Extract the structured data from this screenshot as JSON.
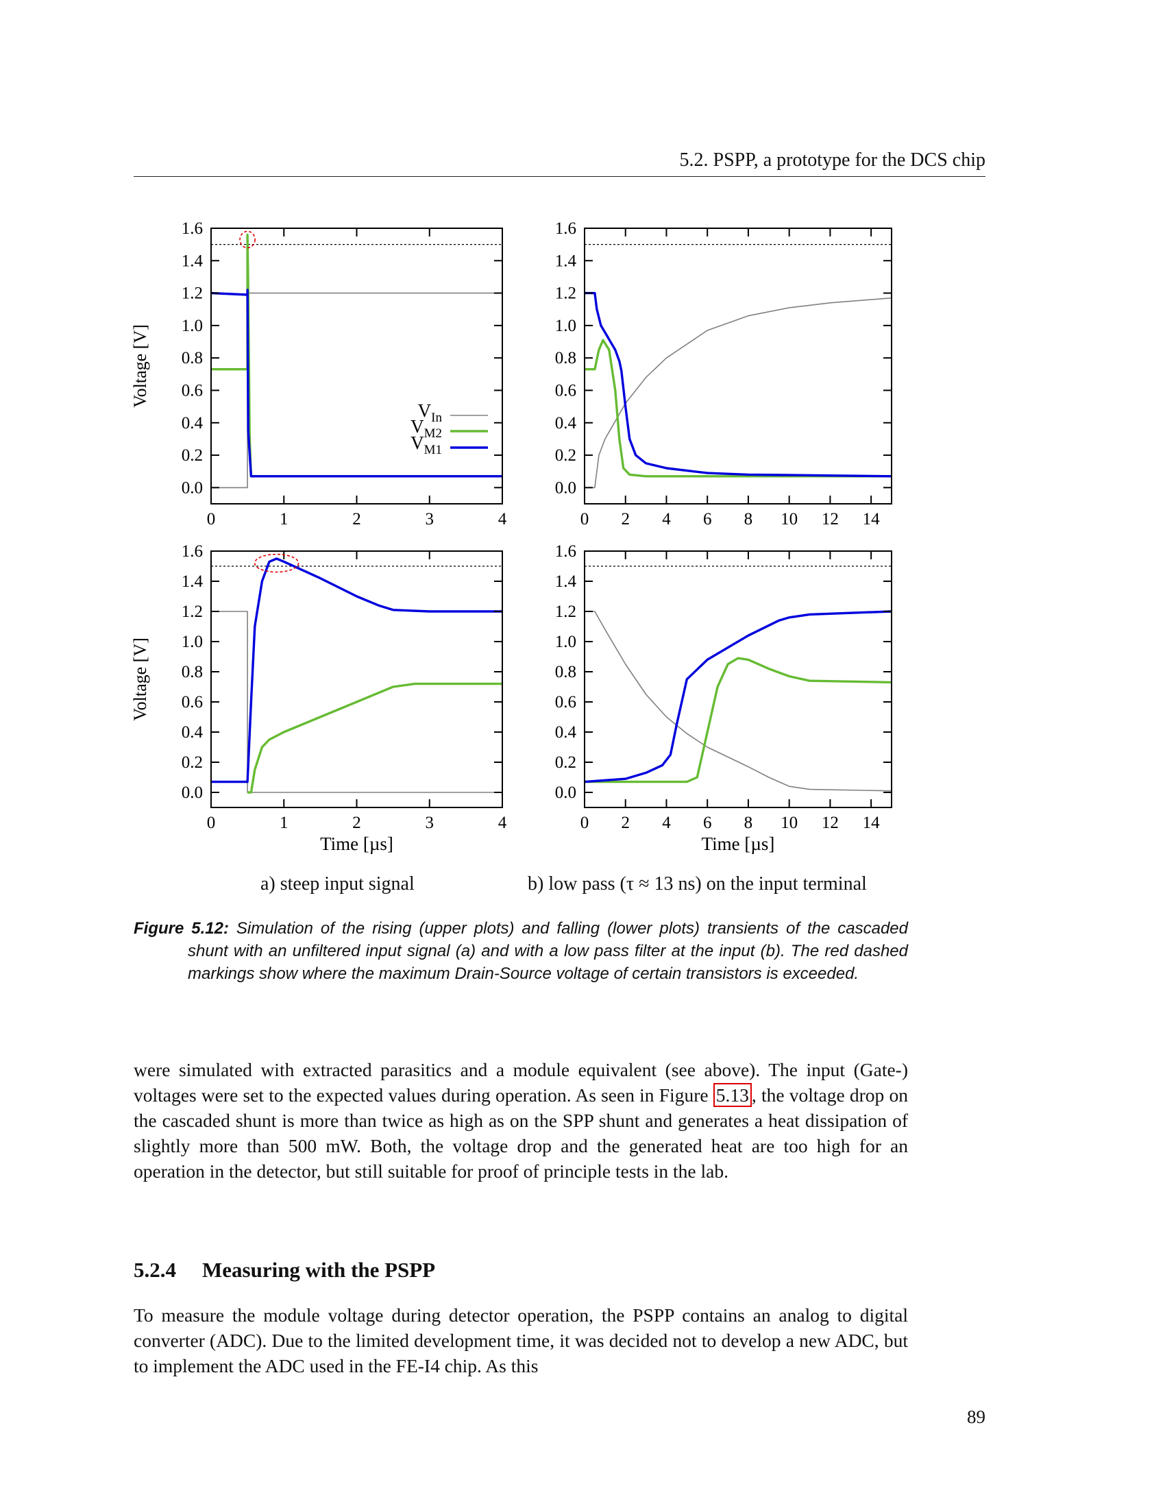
{
  "header": {
    "running_title": "5.2.   PSPP, a prototype for the DCS chip"
  },
  "chart_data": [
    {
      "type": "line",
      "panel": "a-top",
      "ylabel": "Voltage [V]",
      "xlabel": "",
      "xlim": [
        0,
        4
      ],
      "ylim": [
        -0.1,
        1.6
      ],
      "xticks": [
        0,
        1,
        2,
        3,
        4
      ],
      "yticks": [
        "0.0",
        "0.2",
        "0.4",
        "0.6",
        "0.8",
        "1.0",
        "1.2",
        "1.4",
        "1.6"
      ],
      "limit_line": 1.5,
      "marker": {
        "x": 0.5,
        "y": 1.53
      },
      "legend": "right",
      "series": [
        {
          "name": "V_In",
          "color": "#808080",
          "x": [
            0,
            0.5,
            0.5,
            4
          ],
          "y": [
            0,
            0,
            1.2,
            1.2
          ]
        },
        {
          "name": "V_M2",
          "color": "#66bb33",
          "x": [
            0,
            0.5,
            0.5,
            0.51,
            0.53,
            0.55,
            4
          ],
          "y": [
            0.73,
            0.73,
            1.56,
            1.23,
            0.3,
            0.07,
            0.07
          ]
        },
        {
          "name": "V_M1",
          "color": "#0000dd",
          "x": [
            0,
            0.5,
            0.5,
            0.51,
            0.55,
            4
          ],
          "y": [
            1.2,
            1.19,
            1.22,
            0.35,
            0.07,
            0.07
          ]
        }
      ]
    },
    {
      "type": "line",
      "panel": "b-top",
      "ylabel": "",
      "xlabel": "",
      "xlim": [
        0,
        15
      ],
      "ylim": [
        -0.1,
        1.6
      ],
      "xticks": [
        0,
        2,
        4,
        6,
        8,
        10,
        12,
        14
      ],
      "yticks": [
        "0.0",
        "0.2",
        "0.4",
        "0.6",
        "0.8",
        "1.0",
        "1.2",
        "1.4",
        "1.6"
      ],
      "limit_line": 1.5,
      "series": [
        {
          "name": "V_In",
          "color": "#808080",
          "x": [
            0,
            0.5,
            0.7,
            1,
            2,
            3,
            4,
            6,
            8,
            10,
            12,
            15
          ],
          "y": [
            0,
            0,
            0.2,
            0.3,
            0.52,
            0.68,
            0.8,
            0.97,
            1.06,
            1.11,
            1.14,
            1.17
          ]
        },
        {
          "name": "V_M2",
          "color": "#66bb33",
          "x": [
            0,
            0.5,
            0.7,
            0.9,
            1.2,
            1.5,
            1.7,
            1.9,
            2.2,
            3,
            15
          ],
          "y": [
            0.73,
            0.73,
            0.85,
            0.91,
            0.85,
            0.6,
            0.3,
            0.12,
            0.08,
            0.07,
            0.07
          ]
        },
        {
          "name": "V_M1",
          "color": "#0000dd",
          "x": [
            0,
            0.5,
            0.6,
            0.8,
            1.5,
            1.7,
            1.8,
            2,
            2.2,
            2.5,
            3,
            4,
            6,
            8,
            15
          ],
          "y": [
            1.2,
            1.2,
            1.1,
            1.0,
            0.85,
            0.78,
            0.72,
            0.5,
            0.3,
            0.2,
            0.15,
            0.12,
            0.09,
            0.08,
            0.07
          ]
        }
      ]
    },
    {
      "type": "line",
      "panel": "a-bottom",
      "ylabel": "Voltage [V]",
      "xlabel": "Time [µs]",
      "xlim": [
        0,
        4
      ],
      "ylim": [
        -0.1,
        1.6
      ],
      "xticks": [
        0,
        1,
        2,
        3,
        4
      ],
      "yticks": [
        "0.0",
        "0.2",
        "0.4",
        "0.6",
        "0.8",
        "1.0",
        "1.2",
        "1.4",
        "1.6"
      ],
      "limit_line": 1.5,
      "marker": {
        "x": 0.9,
        "y": 1.52
      },
      "series": [
        {
          "name": "V_In",
          "color": "#808080",
          "x": [
            0,
            0.5,
            0.5,
            4
          ],
          "y": [
            1.2,
            1.2,
            0,
            0
          ]
        },
        {
          "name": "V_M2",
          "color": "#66bb33",
          "x": [
            0.5,
            0.55,
            0.6,
            0.7,
            0.8,
            1,
            1.5,
            2,
            2.5,
            2.8,
            4
          ],
          "y": [
            0,
            0,
            0.15,
            0.3,
            0.35,
            0.4,
            0.5,
            0.6,
            0.7,
            0.72,
            0.72
          ]
        },
        {
          "name": "V_M1",
          "color": "#0000dd",
          "x": [
            0,
            0.5,
            0.55,
            0.6,
            0.7,
            0.8,
            0.9,
            1,
            1.5,
            2,
            2.3,
            2.5,
            3,
            4
          ],
          "y": [
            0.07,
            0.07,
            0.6,
            1.1,
            1.4,
            1.53,
            1.55,
            1.53,
            1.42,
            1.3,
            1.24,
            1.21,
            1.2,
            1.2
          ]
        }
      ]
    },
    {
      "type": "line",
      "panel": "b-bottom",
      "ylabel": "",
      "xlabel": "Time [µs]",
      "xlim": [
        0,
        15
      ],
      "ylim": [
        -0.1,
        1.6
      ],
      "xticks": [
        0,
        2,
        4,
        6,
        8,
        10,
        12,
        14
      ],
      "yticks": [
        "0.0",
        "0.2",
        "0.4",
        "0.6",
        "0.8",
        "1.0",
        "1.2",
        "1.4",
        "1.6"
      ],
      "limit_line": 1.5,
      "series": [
        {
          "name": "V_In",
          "color": "#808080",
          "x": [
            0,
            0.5,
            1,
            2,
            3,
            4,
            5,
            6,
            8,
            9,
            10,
            11,
            15
          ],
          "y": [
            1.2,
            1.2,
            1.08,
            0.85,
            0.65,
            0.5,
            0.39,
            0.3,
            0.17,
            0.1,
            0.04,
            0.02,
            0.01
          ]
        },
        {
          "name": "V_M2",
          "color": "#66bb33",
          "x": [
            0,
            5,
            5.5,
            6,
            6.5,
            7,
            7.5,
            8,
            9,
            10,
            11,
            15
          ],
          "y": [
            0.07,
            0.07,
            0.1,
            0.4,
            0.7,
            0.85,
            0.89,
            0.88,
            0.82,
            0.77,
            0.74,
            0.73
          ]
        },
        {
          "name": "V_M1",
          "color": "#0000dd",
          "x": [
            0,
            2,
            3,
            3.8,
            4.2,
            4.5,
            5,
            6,
            8,
            9.5,
            10,
            11,
            15
          ],
          "y": [
            0.07,
            0.09,
            0.13,
            0.18,
            0.25,
            0.45,
            0.75,
            0.88,
            1.04,
            1.14,
            1.16,
            1.18,
            1.2
          ]
        }
      ]
    }
  ],
  "legend": [
    {
      "main": "V",
      "sub": "In"
    },
    {
      "main": "V",
      "sub": "M2"
    },
    {
      "main": "V",
      "sub": "M1"
    }
  ],
  "subcaptions": {
    "a": "a) steep input signal",
    "b": "b) low pass (τ ≈ 13 ns) on the input terminal"
  },
  "caption": {
    "label": "Figure 5.12:",
    "text": " Simulation of the rising (upper plots) and falling (lower plots) transients of the cascaded shunt with an unfiltered input signal (a) and with a low pass filter at the input (b).  The red dashed markings show where the maximum Drain-Source voltage of certain transistors is exceeded."
  },
  "body": {
    "p1_a": "were simulated with extracted parasitics and a module equivalent (see above).  The input (Gate-) voltages were set to the expected values during operation.  As seen in Figure ",
    "p1_ref": "5.13",
    "p1_b": ", the voltage drop on the cascaded shunt is more than twice as high as on the SPP shunt and generates a heat dissipation of slightly more than 500 mW. Both, the voltage drop and the generated heat are too high for an operation in the detector, but still suitable for proof of principle tests in the lab.",
    "section_number": "5.2.4",
    "section_title": "Measuring with the PSPP",
    "p2": "To measure the module voltage during detector operation, the PSPP contains an analog to digital converter (ADC). Due to the limited development time, it was decided not to develop a new ADC, but to implement the ADC used in the FE-I4 chip.  As this"
  },
  "page_number": "89"
}
